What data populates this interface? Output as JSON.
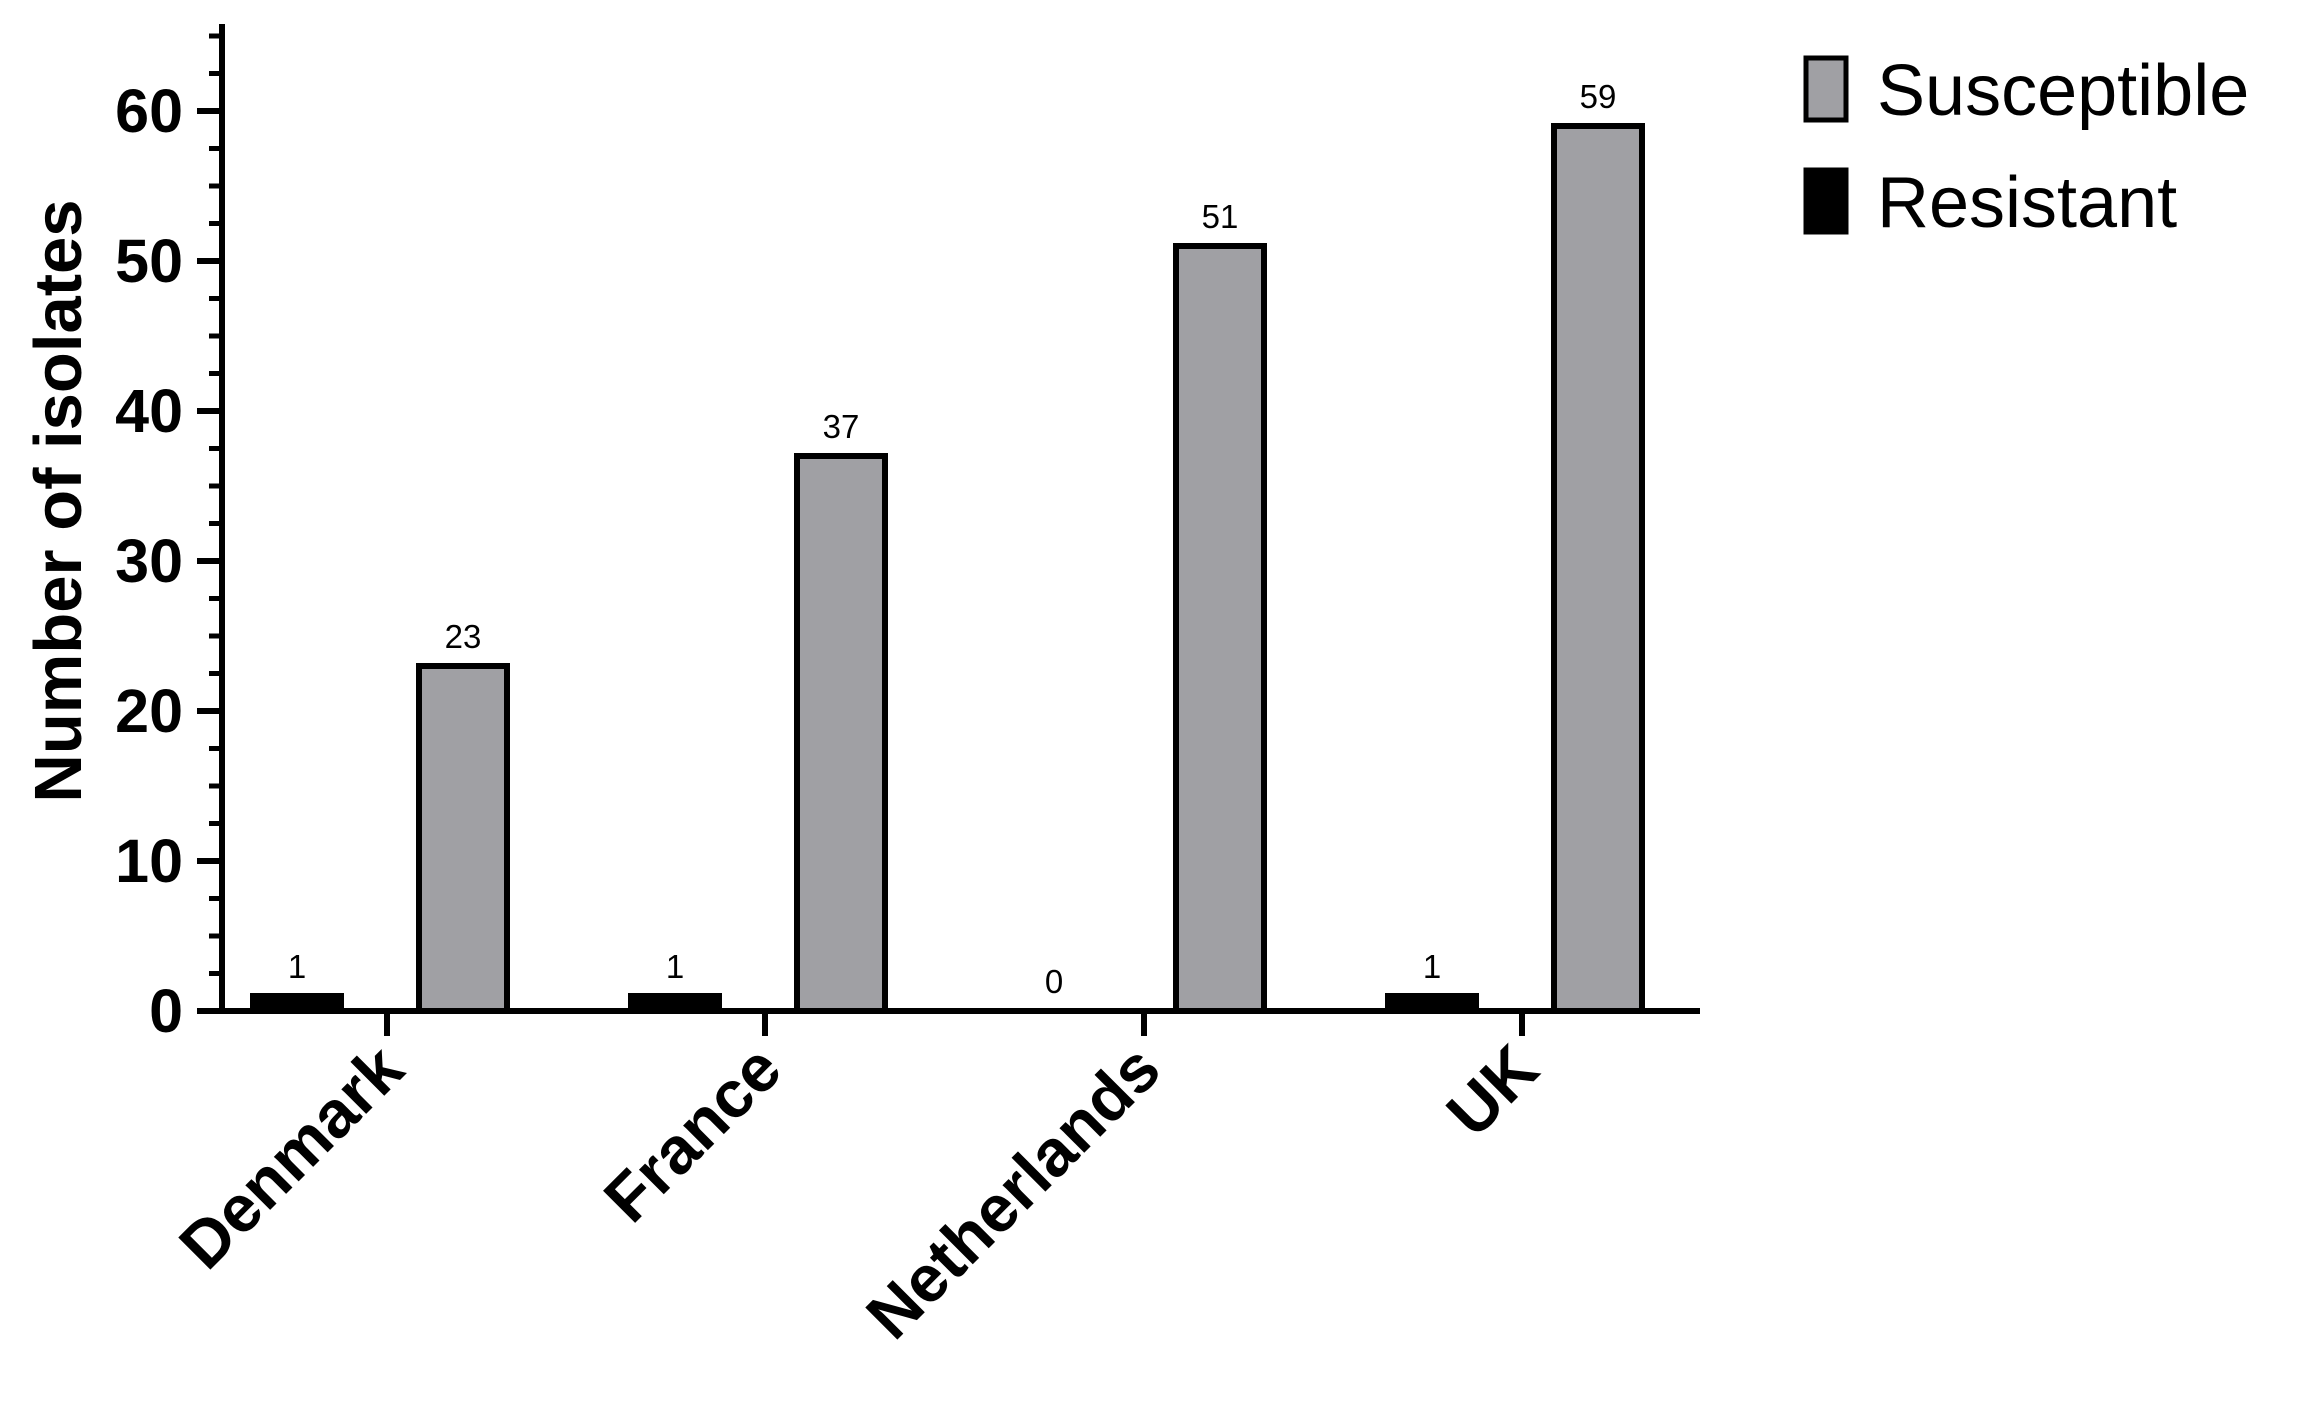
{
  "chart_data": {
    "type": "bar",
    "title": "",
    "xlabel": "",
    "ylabel": "Number of isolates",
    "ylim": [
      0,
      65
    ],
    "yticks": [
      0,
      10,
      20,
      30,
      40,
      50,
      60
    ],
    "categories": [
      "Denmark",
      "France",
      "Netherlands",
      "UK"
    ],
    "series": [
      {
        "name": "Resistant",
        "values": [
          1,
          1,
          0,
          1
        ],
        "color": "#000000"
      },
      {
        "name": "Susceptible",
        "values": [
          23,
          37,
          51,
          59
        ],
        "color": "#a0a0a4"
      }
    ],
    "legend_position": "top-right",
    "grid": false
  }
}
